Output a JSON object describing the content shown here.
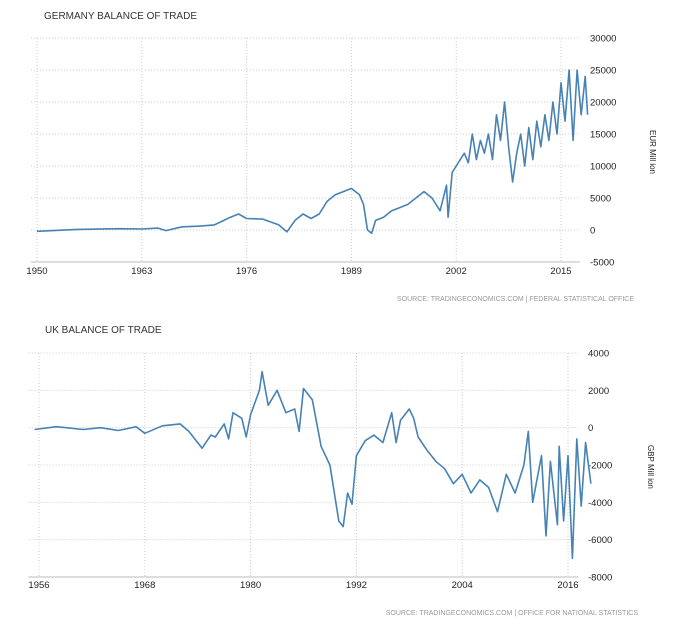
{
  "chart_data": [
    {
      "type": "line",
      "title": "GERMANY BALANCE OF TRADE",
      "ylabel": "EUR Million",
      "unit_label": "EUR Mill ion",
      "source": "SOURCE: TRADINGECONOMICS.COM | FEDERAL STATISTICAL OFFICE",
      "xlim": [
        1950,
        2018.3
      ],
      "ylim": [
        -5000,
        30000
      ],
      "xticks": [
        1950,
        1963,
        1976,
        1989,
        2002,
        2015
      ],
      "yticks": [
        30000,
        25000,
        20000,
        15000,
        10000,
        5000,
        0,
        -5000
      ],
      "grid": true,
      "color": "#4682b4",
      "points": [
        [
          1950,
          -200
        ],
        [
          1955,
          100
        ],
        [
          1960,
          200
        ],
        [
          1963,
          150
        ],
        [
          1965,
          300
        ],
        [
          1966,
          -100
        ],
        [
          1968,
          500
        ],
        [
          1970,
          600
        ],
        [
          1972,
          800
        ],
        [
          1974,
          2000
        ],
        [
          1975,
          2500
        ],
        [
          1976,
          1800
        ],
        [
          1978,
          1700
        ],
        [
          1980,
          800
        ],
        [
          1981,
          -300
        ],
        [
          1982,
          1500
        ],
        [
          1983,
          2500
        ],
        [
          1984,
          1800
        ],
        [
          1985,
          2500
        ],
        [
          1986,
          4500
        ],
        [
          1987,
          5500
        ],
        [
          1988,
          6000
        ],
        [
          1989,
          6500
        ],
        [
          1990,
          5500
        ],
        [
          1990.5,
          4000
        ],
        [
          1991,
          0
        ],
        [
          1991.5,
          -500
        ],
        [
          1992,
          1500
        ],
        [
          1993,
          2000
        ],
        [
          1994,
          3000
        ],
        [
          1995,
          3500
        ],
        [
          1996,
          4000
        ],
        [
          1997,
          5000
        ],
        [
          1998,
          6000
        ],
        [
          1999,
          5000
        ],
        [
          2000,
          3000
        ],
        [
          2000.8,
          7000
        ],
        [
          2001,
          2000
        ],
        [
          2001.5,
          9000
        ],
        [
          2002,
          10000
        ],
        [
          2003,
          12000
        ],
        [
          2003.5,
          10500
        ],
        [
          2004,
          15000
        ],
        [
          2004.5,
          11000
        ],
        [
          2005,
          14000
        ],
        [
          2005.5,
          12000
        ],
        [
          2006,
          15000
        ],
        [
          2006.5,
          11000
        ],
        [
          2007,
          18000
        ],
        [
          2007.5,
          14000
        ],
        [
          2008,
          20000
        ],
        [
          2008.5,
          13000
        ],
        [
          2009,
          7500
        ],
        [
          2009.5,
          12000
        ],
        [
          2010,
          15000
        ],
        [
          2010.5,
          10000
        ],
        [
          2011,
          16000
        ],
        [
          2011.5,
          11000
        ],
        [
          2012,
          17000
        ],
        [
          2012.5,
          13000
        ],
        [
          2013,
          18000
        ],
        [
          2013.5,
          14000
        ],
        [
          2014,
          20000
        ],
        [
          2014.5,
          15000
        ],
        [
          2015,
          23000
        ],
        [
          2015.5,
          17000
        ],
        [
          2016,
          25000
        ],
        [
          2016.5,
          14000
        ],
        [
          2017,
          25000
        ],
        [
          2017.5,
          18000
        ],
        [
          2018,
          24000
        ],
        [
          2018.3,
          18000
        ]
      ]
    },
    {
      "type": "line",
      "title": "UK BALANCE OF TRADE",
      "ylabel": "GBP Million",
      "unit_label": "GBP Mill ion",
      "source": "SOURCE: TRADINGECONOMICS.COM | OFFICE FOR NATIONAL STATISTICS",
      "xlim": [
        1955.5,
        2018.6
      ],
      "ylim": [
        -8000,
        4000
      ],
      "xticks": [
        1956,
        1968,
        1980,
        1992,
        2004,
        2016
      ],
      "yticks": [
        4000,
        2000,
        0,
        -2000,
        -4000,
        -6000,
        -8000
      ],
      "grid": true,
      "color": "#4682b4",
      "points": [
        [
          1955.5,
          -100
        ],
        [
          1958,
          50
        ],
        [
          1961,
          -100
        ],
        [
          1963,
          0
        ],
        [
          1965,
          -150
        ],
        [
          1967,
          50
        ],
        [
          1968,
          -300
        ],
        [
          1970,
          100
        ],
        [
          1972,
          200
        ],
        [
          1973,
          -200
        ],
        [
          1974.5,
          -1100
        ],
        [
          1975.5,
          -400
        ],
        [
          1976,
          -500
        ],
        [
          1977,
          200
        ],
        [
          1977.5,
          -600
        ],
        [
          1978,
          800
        ],
        [
          1979,
          500
        ],
        [
          1979.5,
          -500
        ],
        [
          1980,
          700
        ],
        [
          1981,
          2000
        ],
        [
          1981.3,
          3000
        ],
        [
          1982,
          1200
        ],
        [
          1983,
          2000
        ],
        [
          1984,
          800
        ],
        [
          1985,
          1000
        ],
        [
          1985.5,
          -200
        ],
        [
          1986,
          2100
        ],
        [
          1987,
          1500
        ],
        [
          1988,
          -1000
        ],
        [
          1989,
          -2000
        ],
        [
          1990,
          -5000
        ],
        [
          1990.5,
          -5300
        ],
        [
          1991,
          -3500
        ],
        [
          1991.5,
          -4100
        ],
        [
          1992,
          -1500
        ],
        [
          1993,
          -700
        ],
        [
          1994,
          -400
        ],
        [
          1995,
          -800
        ],
        [
          1996,
          800
        ],
        [
          1996.5,
          -800
        ],
        [
          1997,
          400
        ],
        [
          1998,
          1000
        ],
        [
          1998.5,
          500
        ],
        [
          1999,
          -500
        ],
        [
          2000,
          -1200
        ],
        [
          2001,
          -1800
        ],
        [
          2002,
          -2200
        ],
        [
          2003,
          -3000
        ],
        [
          2004,
          -2500
        ],
        [
          2005,
          -3500
        ],
        [
          2006,
          -2800
        ],
        [
          2007,
          -3200
        ],
        [
          2008,
          -4500
        ],
        [
          2009,
          -2500
        ],
        [
          2010,
          -3500
        ],
        [
          2011,
          -2000
        ],
        [
          2011.5,
          -200
        ],
        [
          2012,
          -4000
        ],
        [
          2013,
          -1500
        ],
        [
          2013.5,
          -5800
        ],
        [
          2014,
          -1800
        ],
        [
          2014.8,
          -5200
        ],
        [
          2015,
          -1000
        ],
        [
          2015.5,
          -5000
        ],
        [
          2016,
          -1500
        ],
        [
          2016.5,
          -7000
        ],
        [
          2017,
          -600
        ],
        [
          2017.5,
          -4200
        ],
        [
          2018,
          -800
        ],
        [
          2018.6,
          -3000
        ]
      ]
    }
  ]
}
